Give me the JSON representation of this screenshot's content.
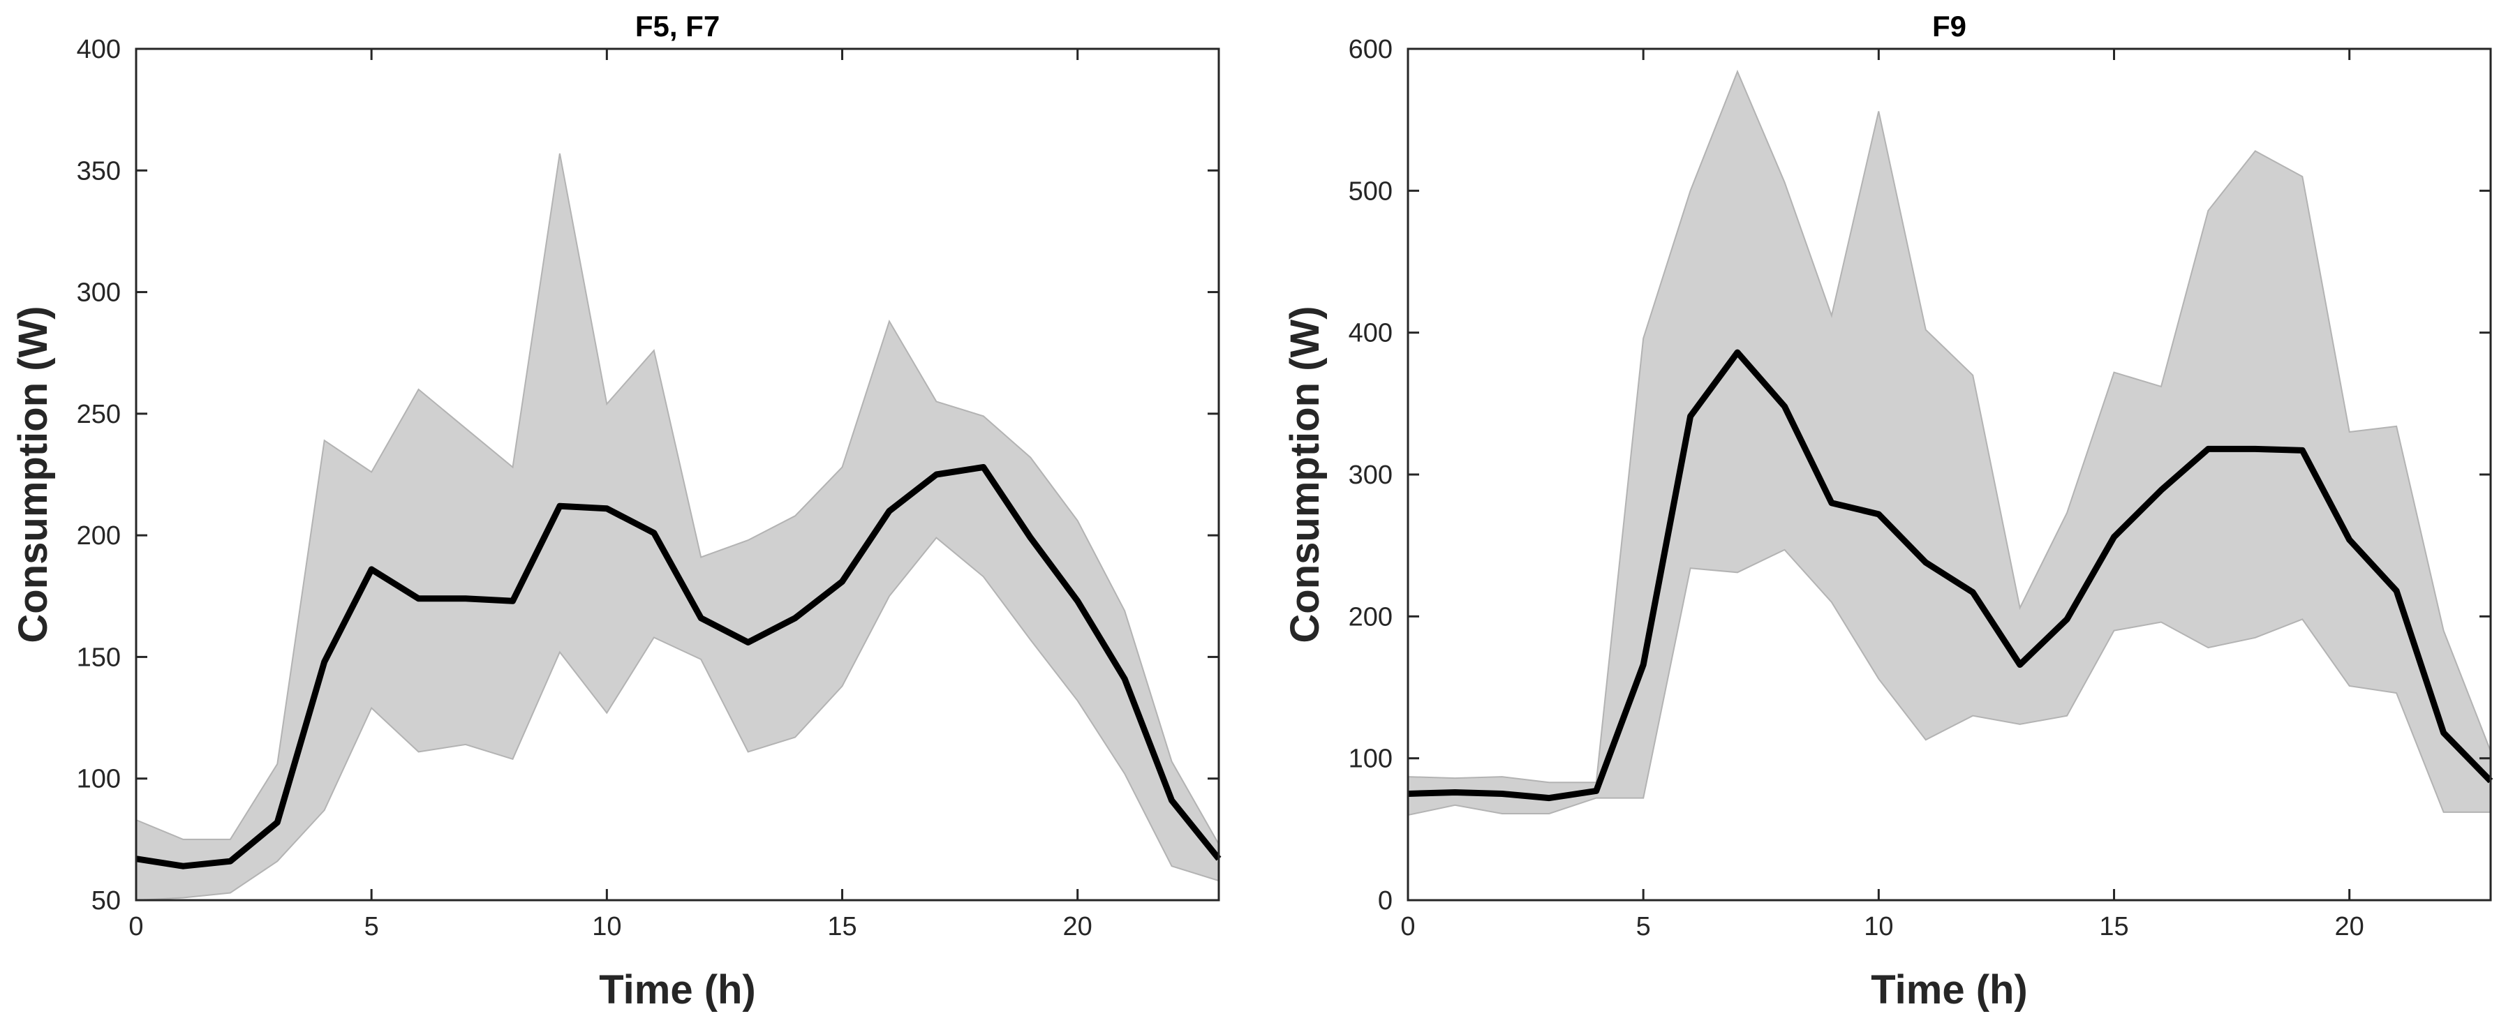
{
  "chart_data": [
    {
      "type": "line",
      "title": "F5, F7",
      "xlabel": "Time (h)",
      "ylabel": "Consumption (W)",
      "xlim": [
        0,
        23
      ],
      "ylim": [
        50,
        400
      ],
      "xticks": [
        0,
        5,
        10,
        15,
        20
      ],
      "yticks": [
        50,
        100,
        150,
        200,
        250,
        300,
        350,
        400
      ],
      "grid": false,
      "x": [
        0,
        1,
        2,
        3,
        4,
        5,
        6,
        7,
        8,
        9,
        10,
        11,
        12,
        13,
        14,
        15,
        16,
        17,
        18,
        19,
        20,
        21,
        22,
        23
      ],
      "series": [
        {
          "name": "mean",
          "values": [
            67,
            64,
            66,
            82,
            148,
            186,
            174,
            174,
            173,
            212,
            211,
            201,
            166,
            156,
            166,
            181,
            210,
            225,
            228,
            199,
            173,
            141,
            91,
            67
          ]
        },
        {
          "name": "upper",
          "values": [
            83,
            75,
            75,
            106,
            239,
            226,
            260,
            244,
            228,
            357,
            254,
            276,
            191,
            198,
            208,
            228,
            288,
            255,
            249,
            232,
            206,
            169,
            107,
            73
          ]
        },
        {
          "name": "lower",
          "values": [
            50,
            51,
            53,
            66,
            87,
            129,
            111,
            114,
            108,
            152,
            127,
            158,
            149,
            111,
            117,
            138,
            175,
            199,
            183,
            157,
            132,
            102,
            64,
            58
          ]
        }
      ],
      "colors": {
        "line": "#000000",
        "band": "#d0d0d0",
        "band_edge": "#b3b3b3"
      }
    },
    {
      "type": "line",
      "title": "F9",
      "xlabel": "Time (h)",
      "ylabel": "Consumption (W)",
      "xlim": [
        0,
        23
      ],
      "ylim": [
        0,
        600
      ],
      "xticks": [
        0,
        5,
        10,
        15,
        20
      ],
      "yticks": [
        0,
        100,
        200,
        300,
        400,
        500,
        600
      ],
      "grid": false,
      "x": [
        0,
        1,
        2,
        3,
        4,
        5,
        6,
        7,
        8,
        9,
        10,
        11,
        12,
        13,
        14,
        15,
        16,
        17,
        18,
        19,
        20,
        21,
        22,
        23
      ],
      "series": [
        {
          "name": "mean",
          "values": [
            75,
            76,
            75,
            72,
            77,
            166,
            341,
            386,
            348,
            280,
            272,
            238,
            217,
            166,
            198,
            256,
            289,
            318,
            318,
            317,
            254,
            218,
            118,
            84
          ]
        },
        {
          "name": "upper",
          "values": [
            87,
            86,
            87,
            83,
            83,
            396,
            500,
            584,
            506,
            412,
            556,
            402,
            370,
            206,
            273,
            372,
            362,
            486,
            528,
            510,
            330,
            334,
            190,
            105
          ]
        },
        {
          "name": "lower",
          "values": [
            60,
            67,
            61,
            61,
            72,
            72,
            234,
            231,
            247,
            210,
            156,
            113,
            130,
            124,
            130,
            190,
            196,
            178,
            185,
            198,
            151,
            146,
            62,
            62
          ]
        }
      ],
      "colors": {
        "line": "#000000",
        "band": "#d0d0d0",
        "band_edge": "#b3b3b3"
      }
    }
  ]
}
